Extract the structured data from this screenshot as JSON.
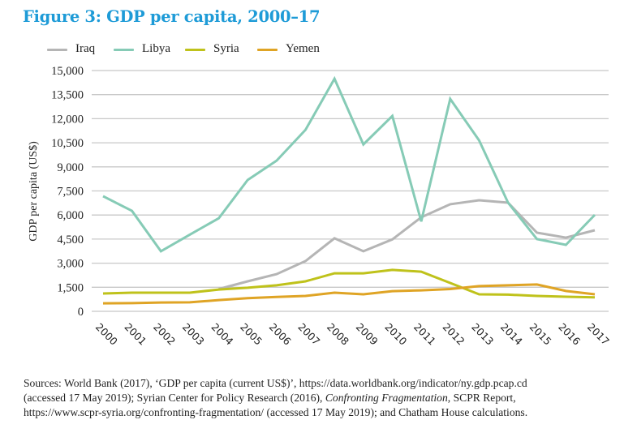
{
  "figure": {
    "title": "Figure 3: GDP per capita, 2000–17",
    "title_color": "#1E9BD7"
  },
  "chart_data": {
    "type": "line",
    "title": "Figure 3: GDP per capita, 2000–17",
    "xlabel": "",
    "ylabel": "GDP per capita (US$)",
    "ylim": [
      0,
      15000
    ],
    "yticks": [
      0,
      1500,
      3000,
      4500,
      6000,
      7500,
      9000,
      10500,
      12000,
      13500,
      15000
    ],
    "ytick_labels": [
      "0",
      "1,500",
      "3,000",
      "4,500",
      "6,000",
      "7,500",
      "9,000",
      "10,500",
      "12,000",
      "13,500",
      "15,000"
    ],
    "x": [
      "2000",
      "2001",
      "2002",
      "2003",
      "2004",
      "2005",
      "2006",
      "2007",
      "2008",
      "2009",
      "2010",
      "2011",
      "2012",
      "2013",
      "2014",
      "2015",
      "2016",
      "2017"
    ],
    "grid": "horizontal",
    "legend_position": "top-left",
    "series": [
      {
        "name": "Iraq",
        "color": "#B5B5B5",
        "values": [
          null,
          null,
          null,
          null,
          1390,
          1870,
          2320,
          3130,
          4550,
          3740,
          4480,
          5860,
          6670,
          6920,
          6770,
          4900,
          4590,
          5050
        ]
      },
      {
        "name": "Libya",
        "color": "#86CBB6",
        "values": [
          7170,
          6260,
          3740,
          4780,
          5800,
          8180,
          9390,
          11310,
          14490,
          10400,
          12170,
          5600,
          13230,
          10650,
          6770,
          4500,
          4140,
          6010
        ]
      },
      {
        "name": "Syria",
        "color": "#BFC21B",
        "values": [
          1110,
          1160,
          1160,
          1160,
          1360,
          1470,
          1620,
          1870,
          2370,
          2370,
          2580,
          2470,
          1770,
          1060,
          1040,
          960,
          910,
          870
        ]
      },
      {
        "name": "Yemen",
        "color": "#DFA425",
        "values": [
          500,
          510,
          550,
          560,
          700,
          820,
          900,
          960,
          1160,
          1060,
          1260,
          1310,
          1390,
          1570,
          1620,
          1670,
          1270,
          1060
        ]
      }
    ]
  },
  "footer": {
    "line1": "Sources: World Bank (2017), ‘GDP per capita (current US$)’, https://data.worldbank.org/indicator/ny.gdp.pcap.cd",
    "line2_a": "(accessed 17 May 2019); Syrian Center for Policy Research (2016), ",
    "line2_italic": "Confronting Fragmentation",
    "line2_b": ", SCPR Report,",
    "line3": "https://www.scpr-syria.org/confronting-fragmentation/ (accessed 17 May 2019); and Chatham House calculations."
  }
}
